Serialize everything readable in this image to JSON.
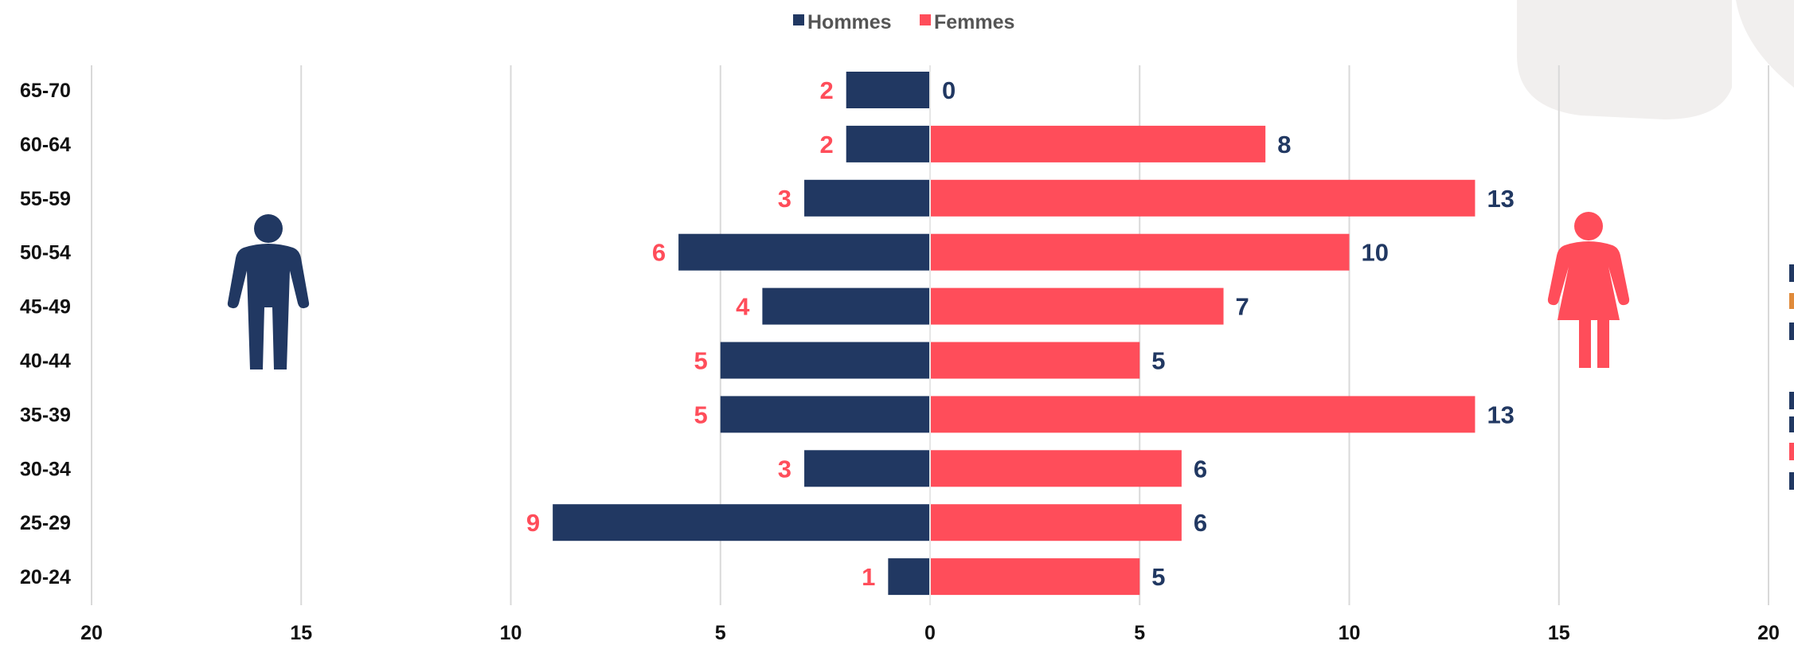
{
  "colors": {
    "men": "#213862",
    "women": "#ff4d5a",
    "grid": "#d9d9d9",
    "watermark": "#f1efee",
    "edge_gold": "#e08a3a"
  },
  "icons": {
    "men": "man-silhouette-icon",
    "women": "woman-silhouette-icon"
  },
  "chart_data": {
    "type": "bar",
    "orientation": "horizontal",
    "layout": "population-pyramid",
    "categories": [
      "65-70",
      "60-64",
      "55-59",
      "50-54",
      "45-49",
      "40-44",
      "35-39",
      "30-34",
      "25-29",
      "20-24"
    ],
    "series": [
      {
        "name": "Hommes",
        "values": [
          2,
          2,
          3,
          6,
          4,
          5,
          5,
          3,
          9,
          1
        ],
        "color": "#213862",
        "side": "left"
      },
      {
        "name": "Femmes",
        "values": [
          0,
          8,
          13,
          10,
          7,
          5,
          13,
          6,
          6,
          5
        ],
        "color": "#ff4d5a",
        "side": "right"
      }
    ],
    "xlim": [
      -20,
      20
    ],
    "xticks": [
      20,
      15,
      10,
      5,
      0,
      5,
      10,
      15,
      20
    ],
    "xtick_values": [
      -20,
      -15,
      -10,
      -5,
      0,
      5,
      10,
      15,
      20
    ],
    "grid": true,
    "legend": "top-center",
    "data_labels": true
  }
}
